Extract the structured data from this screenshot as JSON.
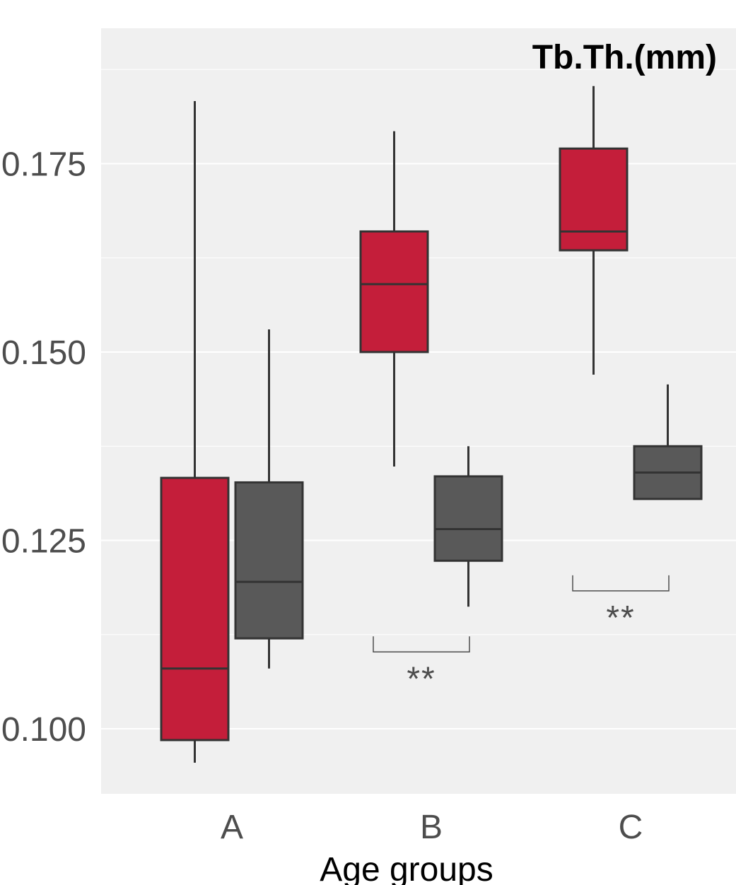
{
  "chart_data": {
    "type": "box",
    "title": "Tb.Th.(mm)",
    "xlabel": "Age groups",
    "ylabel": "",
    "ylim": [
      0.0935,
      0.1945
    ],
    "y_ticks": [
      "0.100",
      "0.125",
      "0.150",
      "0.175"
    ],
    "categories": [
      "A",
      "B",
      "C"
    ],
    "grid": true,
    "series": [
      {
        "color": "#c41e3a",
        "boxes": [
          {
            "category": "A",
            "whisker_low": 0.0955,
            "q1": 0.0985,
            "median": 0.108,
            "q3": 0.1333,
            "whisker_high": 0.1833
          },
          {
            "category": "B",
            "whisker_low": 0.1348,
            "q1": 0.15,
            "median": 0.159,
            "q3": 0.166,
            "whisker_high": 0.1793
          },
          {
            "category": "C",
            "whisker_low": 0.147,
            "q1": 0.1635,
            "median": 0.166,
            "q3": 0.177,
            "whisker_high": 0.1853
          }
        ]
      },
      {
        "color": "#595959",
        "boxes": [
          {
            "category": "A",
            "whisker_low": 0.108,
            "q1": 0.112,
            "median": 0.1195,
            "q3": 0.1327,
            "whisker_high": 0.153
          },
          {
            "category": "B",
            "whisker_low": 0.1162,
            "q1": 0.1223,
            "median": 0.1265,
            "q3": 0.1335,
            "whisker_high": 0.1375
          },
          {
            "category": "C",
            "whisker_low": 0.1305,
            "q1": 0.1305,
            "median": 0.134,
            "q3": 0.1375,
            "whisker_high": 0.1457
          }
        ]
      }
    ],
    "annotations": [
      {
        "category": "B",
        "text": "**",
        "bracket_y": 0.1102
      },
      {
        "category": "C",
        "text": "**",
        "bracket_y": 0.1183
      }
    ],
    "colors": {
      "panel_bg": "#f0f0f0",
      "grid": "#ffffff",
      "box_outline": "#333333",
      "tick_text": "#4d4d4d",
      "annotation": "#4d4d4d"
    }
  }
}
